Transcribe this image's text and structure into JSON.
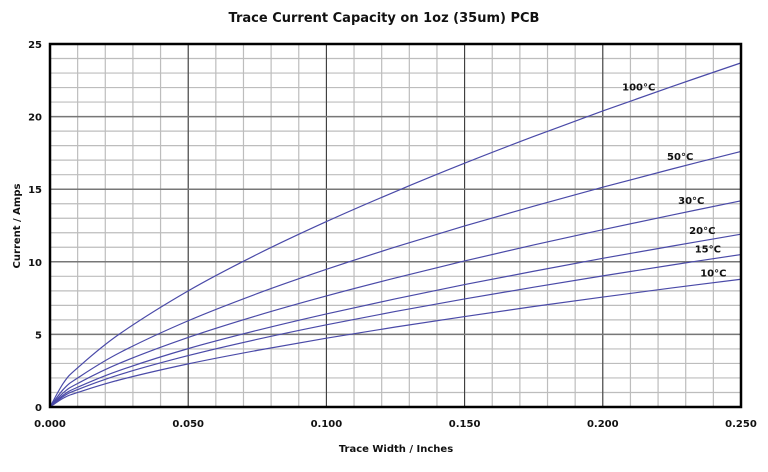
{
  "chart_data": {
    "type": "line",
    "title": "Trace Current Capacity on 1oz (35um) PCB",
    "xlabel": "Trace Width / Inches",
    "ylabel": "Current / Amps",
    "xlim": [
      0,
      0.25
    ],
    "ylim": [
      0,
      25
    ],
    "x_major_ticks": [
      "0.000",
      "0.050",
      "0.100",
      "0.150",
      "0.200",
      "0.250"
    ],
    "x_major_values": [
      0,
      0.05,
      0.1,
      0.15,
      0.2,
      0.25
    ],
    "y_major_ticks": [
      "0",
      "5",
      "10",
      "15",
      "20",
      "25"
    ],
    "y_major_values": [
      0,
      5,
      10,
      15,
      20,
      25
    ],
    "x_minor_step": 0.01,
    "y_minor_step": 1,
    "grid": true,
    "line_color": "#4a4aa8",
    "x": [
      0,
      0.005,
      0.01,
      0.025,
      0.05,
      0.075,
      0.1,
      0.125,
      0.15,
      0.175,
      0.2,
      0.225,
      0.25
    ],
    "series": [
      {
        "name": "100°C",
        "values": [
          0,
          1.69,
          2.7,
          5.01,
          8.0,
          10.52,
          12.77,
          14.84,
          16.79,
          18.63,
          20.39,
          22.07,
          23.7
        ]
      },
      {
        "name": "50°C",
        "values": [
          0,
          1.25,
          2.0,
          3.72,
          5.94,
          7.81,
          9.48,
          11.02,
          12.47,
          13.83,
          15.14,
          16.39,
          17.6
        ]
      },
      {
        "name": "30°C",
        "values": [
          0,
          1.01,
          1.62,
          3.0,
          4.79,
          6.3,
          7.65,
          8.89,
          10.06,
          11.16,
          12.21,
          13.22,
          14.2
        ]
      },
      {
        "name": "20°C",
        "values": [
          0,
          0.85,
          1.36,
          2.51,
          4.02,
          5.28,
          6.41,
          7.45,
          8.43,
          9.35,
          10.24,
          11.08,
          11.9
        ]
      },
      {
        "name": "15°C",
        "values": [
          0,
          0.75,
          1.2,
          2.22,
          3.54,
          4.66,
          5.66,
          6.58,
          7.44,
          8.25,
          9.03,
          9.78,
          10.5
        ]
      },
      {
        "name": "10°C",
        "values": [
          0,
          0.63,
          1.0,
          1.86,
          2.97,
          3.9,
          4.74,
          5.51,
          6.23,
          6.92,
          7.57,
          8.2,
          8.8
        ]
      }
    ]
  }
}
